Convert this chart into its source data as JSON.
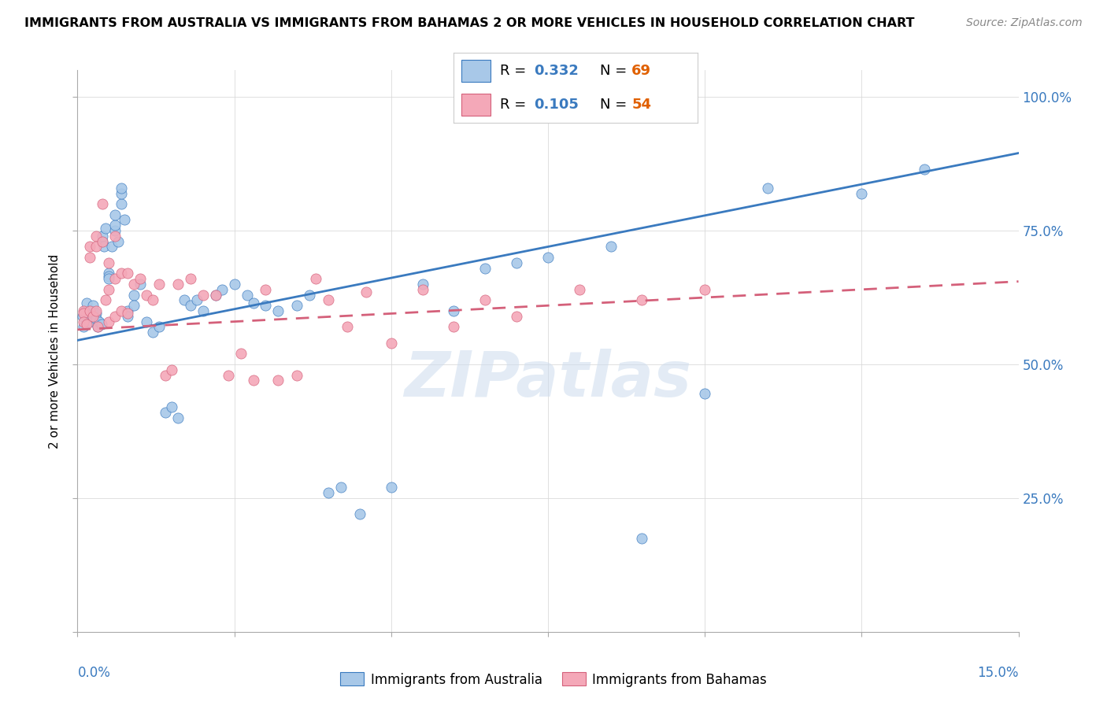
{
  "title": "IMMIGRANTS FROM AUSTRALIA VS IMMIGRANTS FROM BAHAMAS 2 OR MORE VEHICLES IN HOUSEHOLD CORRELATION CHART",
  "source": "Source: ZipAtlas.com",
  "ylabel_label": "2 or more Vehicles in Household",
  "legend_r1": "R = 0.332",
  "legend_n1": "N = 69",
  "legend_r2": "R = 0.105",
  "legend_n2": "N = 54",
  "color_australia": "#a8c8e8",
  "color_bahamas": "#f4a8b8",
  "trendline_australia_color": "#3a7abf",
  "trendline_bahamas_color": "#d4607a",
  "watermark": "ZIPatlas",
  "australia_x": [
    0.0008,
    0.001,
    0.0012,
    0.0015,
    0.0018,
    0.002,
    0.0022,
    0.0024,
    0.0025,
    0.003,
    0.003,
    0.0032,
    0.0035,
    0.0038,
    0.004,
    0.004,
    0.0042,
    0.0045,
    0.005,
    0.005,
    0.005,
    0.0055,
    0.006,
    0.006,
    0.006,
    0.0065,
    0.007,
    0.007,
    0.007,
    0.0075,
    0.008,
    0.008,
    0.009,
    0.009,
    0.01,
    0.011,
    0.012,
    0.013,
    0.014,
    0.015,
    0.016,
    0.017,
    0.018,
    0.019,
    0.02,
    0.022,
    0.023,
    0.025,
    0.027,
    0.028,
    0.03,
    0.032,
    0.035,
    0.037,
    0.04,
    0.042,
    0.045,
    0.05,
    0.055,
    0.06,
    0.065,
    0.07,
    0.075,
    0.085,
    0.09,
    0.1,
    0.11,
    0.125,
    0.135
  ],
  "australia_y": [
    0.59,
    0.57,
    0.6,
    0.615,
    0.58,
    0.59,
    0.6,
    0.595,
    0.61,
    0.595,
    0.585,
    0.57,
    0.58,
    0.575,
    0.73,
    0.74,
    0.72,
    0.755,
    0.67,
    0.665,
    0.66,
    0.72,
    0.75,
    0.76,
    0.78,
    0.73,
    0.8,
    0.82,
    0.83,
    0.77,
    0.6,
    0.59,
    0.63,
    0.61,
    0.65,
    0.58,
    0.56,
    0.57,
    0.41,
    0.42,
    0.4,
    0.62,
    0.61,
    0.62,
    0.6,
    0.63,
    0.64,
    0.65,
    0.63,
    0.615,
    0.61,
    0.6,
    0.61,
    0.63,
    0.26,
    0.27,
    0.22,
    0.27,
    0.65,
    0.6,
    0.68,
    0.69,
    0.7,
    0.72,
    0.175,
    0.445,
    0.83,
    0.82,
    0.865
  ],
  "bahamas_x": [
    0.001,
    0.001,
    0.001,
    0.0015,
    0.002,
    0.002,
    0.002,
    0.0025,
    0.003,
    0.003,
    0.003,
    0.0032,
    0.004,
    0.004,
    0.0045,
    0.005,
    0.005,
    0.005,
    0.006,
    0.006,
    0.006,
    0.007,
    0.007,
    0.008,
    0.008,
    0.009,
    0.01,
    0.011,
    0.012,
    0.013,
    0.014,
    0.015,
    0.016,
    0.018,
    0.02,
    0.022,
    0.024,
    0.026,
    0.028,
    0.03,
    0.032,
    0.035,
    0.038,
    0.04,
    0.043,
    0.046,
    0.05,
    0.055,
    0.06,
    0.065,
    0.07,
    0.08,
    0.09,
    0.1
  ],
  "bahamas_y": [
    0.6,
    0.595,
    0.58,
    0.575,
    0.72,
    0.7,
    0.6,
    0.59,
    0.74,
    0.72,
    0.6,
    0.57,
    0.8,
    0.73,
    0.62,
    0.69,
    0.64,
    0.58,
    0.74,
    0.66,
    0.59,
    0.67,
    0.6,
    0.67,
    0.595,
    0.65,
    0.66,
    0.63,
    0.62,
    0.65,
    0.48,
    0.49,
    0.65,
    0.66,
    0.63,
    0.63,
    0.48,
    0.52,
    0.47,
    0.64,
    0.47,
    0.48,
    0.66,
    0.62,
    0.57,
    0.635,
    0.54,
    0.64,
    0.57,
    0.62,
    0.59,
    0.64,
    0.62,
    0.64
  ],
  "xlim": [
    0.0,
    0.15
  ],
  "ylim": [
    0.0,
    1.05
  ],
  "ytick_positions": [
    0.0,
    0.25,
    0.5,
    0.75,
    1.0
  ],
  "ytick_labels_right": [
    "",
    "25.0%",
    "50.0%",
    "75.0%",
    "100.0%"
  ],
  "xtick_positions": [
    0.0,
    0.025,
    0.05,
    0.075,
    0.1,
    0.125,
    0.15
  ],
  "legend_border_color": "#cccccc",
  "figsize": [
    14.06,
    8.92
  ],
  "dpi": 100
}
